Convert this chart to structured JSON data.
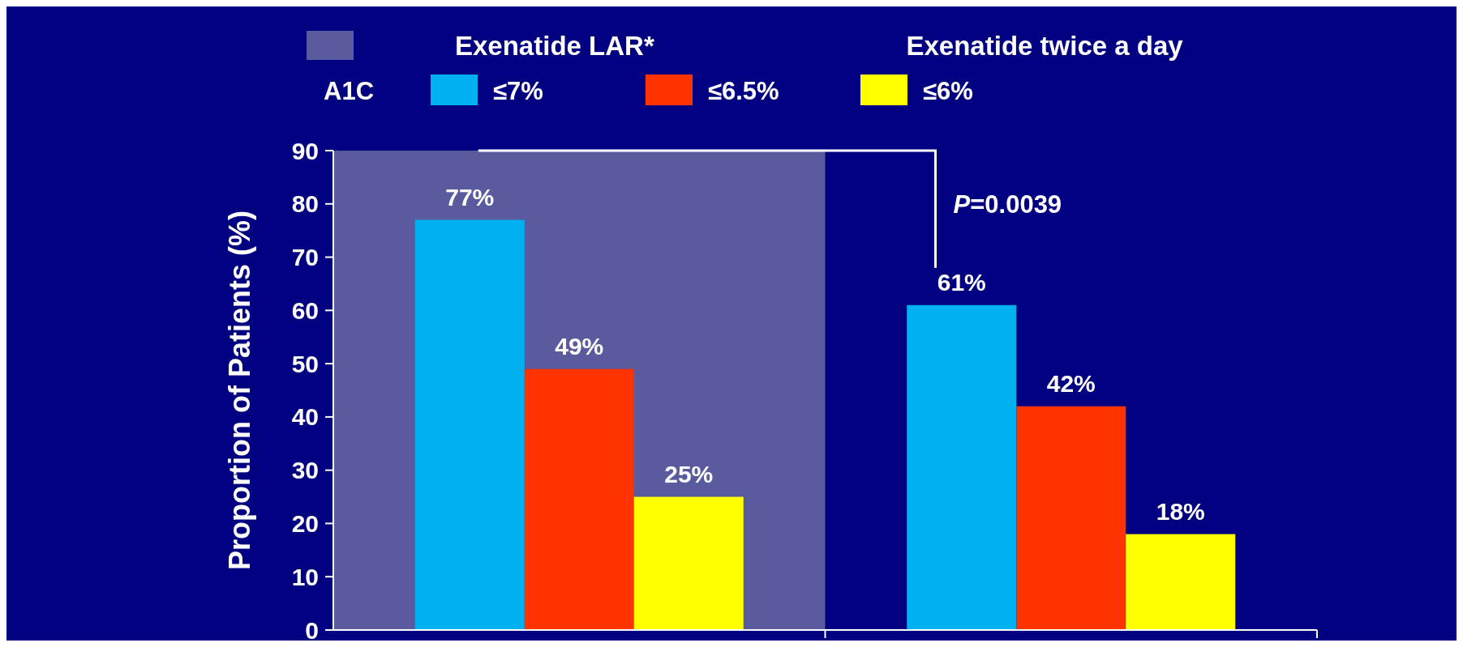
{
  "chart_data": {
    "type": "bar",
    "categories": [
      "Exenatide LAR*",
      "Exenatide twice a day"
    ],
    "legend_title": "A1C",
    "ylabel": "Proportion of Patients (%)",
    "series": [
      {
        "name": "≤7%",
        "color": "#00b0f0",
        "values": [
          77,
          61
        ],
        "value_labels": [
          "77%",
          "61%"
        ]
      },
      {
        "name": "≤6.5%",
        "color": "#ff3300",
        "values": [
          49,
          42
        ],
        "value_labels": [
          "49%",
          "42%"
        ]
      },
      {
        "name": "≤6%",
        "color": "#ffff00",
        "values": [
          25,
          18
        ],
        "value_labels": [
          "25%",
          "18%"
        ]
      }
    ],
    "bands": [
      {
        "axis": "x",
        "from": "Exenatide LAR*",
        "to": "Exenatide LAR*",
        "color": "#5a5a9e"
      }
    ],
    "annotations": [
      "P=0.0039"
    ],
    "ylim": [
      0,
      90
    ],
    "yticks": [
      0,
      10,
      20,
      30,
      40,
      50,
      60,
      70,
      80,
      90
    ],
    "grid": false,
    "legend": "top"
  }
}
